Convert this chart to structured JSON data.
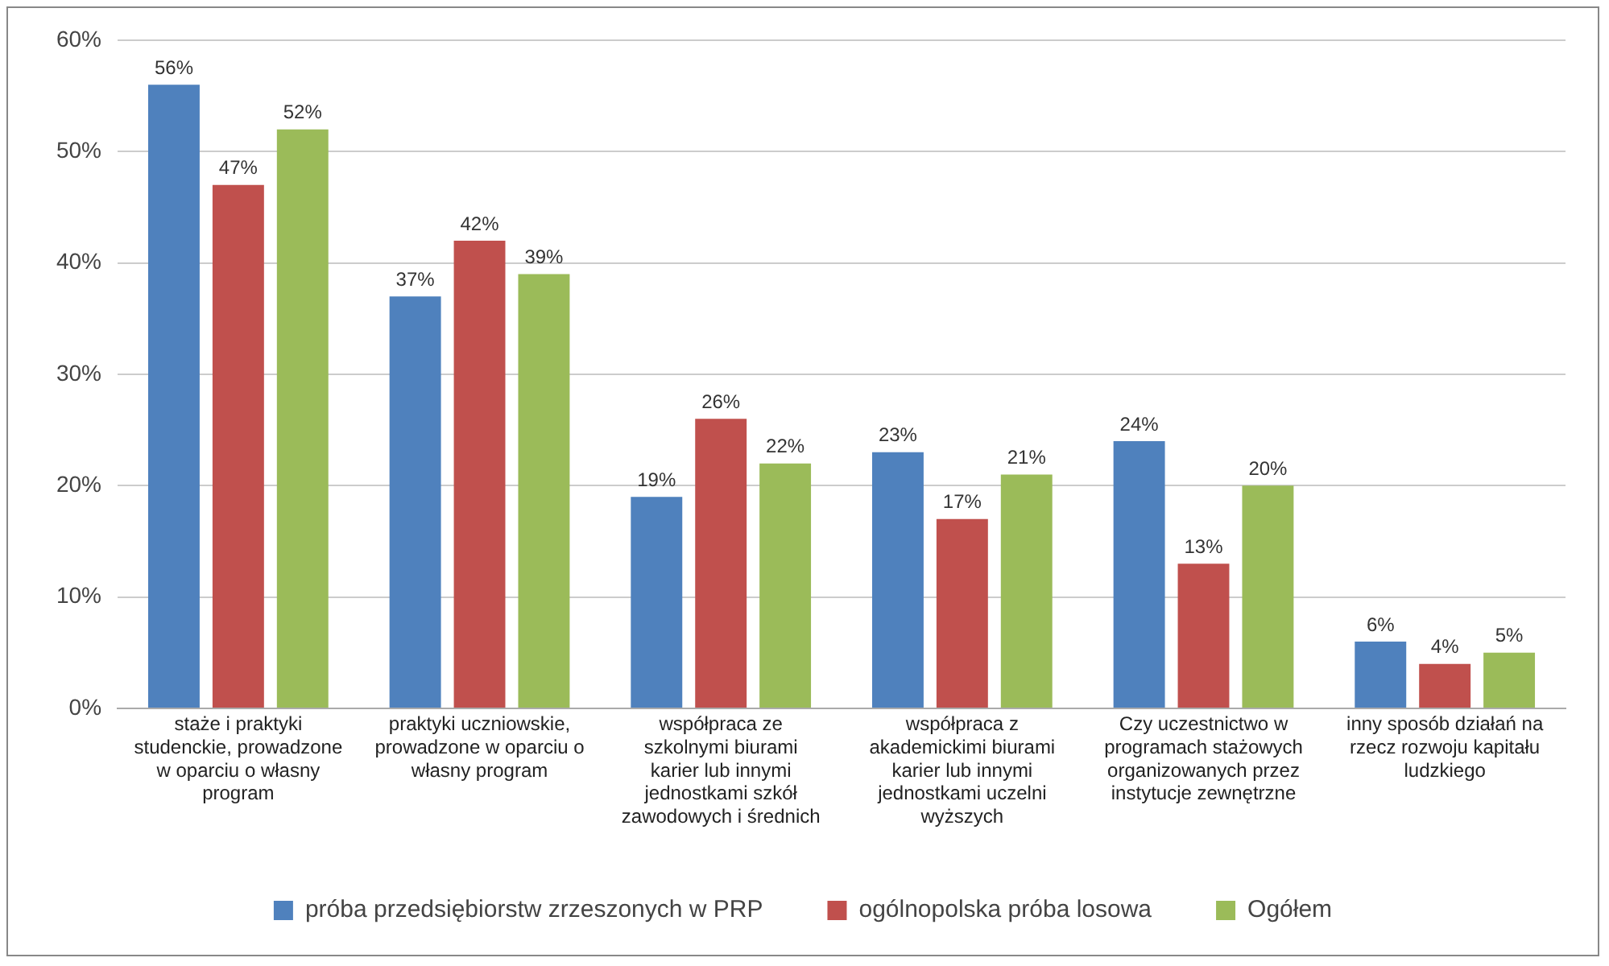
{
  "chart_data": {
    "type": "bar",
    "categories": [
      "staże i praktyki studenckie, prowadzone w oparciu o własny program",
      "praktyki uczniowskie, prowadzone w oparciu o własny program",
      "współpraca ze szkolnymi biurami karier lub innymi jednostkami szkół zawodowych i średnich",
      "współpraca z akademickimi biurami karier lub innymi jednostkami uczelni wyższych",
      "Czy uczestnictwo w programach stażowych organizowanych przez instytucje zewnętrzne",
      "inny sposób działań na rzecz rozwoju kapitału ludzkiego"
    ],
    "series": [
      {
        "name": "próba przedsiębiorstw zrzeszonych w PRP",
        "color": "#4f81bd",
        "values": [
          56,
          37,
          19,
          23,
          24,
          6
        ],
        "value_labels": [
          "56%",
          "37%",
          "19%",
          "23%",
          "24%",
          "6%"
        ]
      },
      {
        "name": "ogólnopolska próba losowa",
        "color": "#c0504d",
        "values": [
          47,
          42,
          26,
          17,
          13,
          4
        ],
        "value_labels": [
          "47%",
          "42%",
          "26%",
          "17%",
          "13%",
          "4%"
        ]
      },
      {
        "name": "Ogółem",
        "color": "#9bbb59",
        "values": [
          52,
          39,
          22,
          21,
          20,
          5
        ],
        "value_labels": [
          "52%",
          "39%",
          "22%",
          "21%",
          "20%",
          "5%"
        ]
      }
    ],
    "ylim": [
      0,
      60
    ],
    "yticks": [
      {
        "value": 0,
        "label": "0%"
      },
      {
        "value": 10,
        "label": "10%"
      },
      {
        "value": 20,
        "label": "20%"
      },
      {
        "value": 30,
        "label": "30%"
      },
      {
        "value": 40,
        "label": "40%"
      },
      {
        "value": 50,
        "label": "50%"
      },
      {
        "value": 60,
        "label": "60%"
      }
    ],
    "grid": "y",
    "legend": "bottom"
  }
}
